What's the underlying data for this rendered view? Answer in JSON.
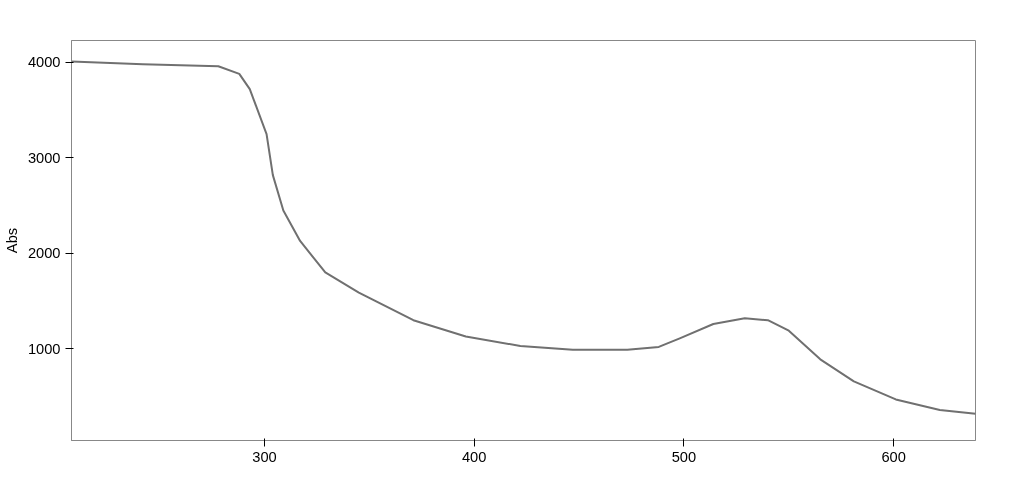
{
  "chart_data": {
    "type": "line",
    "ylabel": "Abs",
    "x": [
      208,
      242,
      278,
      288,
      293,
      301,
      304,
      309,
      317,
      329,
      345,
      371,
      396,
      422,
      447,
      473,
      488,
      498,
      514,
      529,
      540,
      550,
      565,
      581,
      601,
      622,
      639
    ],
    "series": [
      {
        "color": "#707070",
        "values": [
          4010,
          3980,
          3960,
          3880,
          3720,
          3250,
          2820,
          2450,
          2130,
          1800,
          1590,
          1300,
          1130,
          1030,
          990,
          990,
          1020,
          1110,
          1260,
          1320,
          1300,
          1190,
          890,
          660,
          470,
          360,
          320
        ]
      }
    ],
    "xlim": [
      208,
      639
    ],
    "xticks": [
      300,
      400,
      500,
      600
    ],
    "ylim": [
      40,
      4230
    ],
    "yticks": [
      1000,
      2000,
      3000,
      4000
    ],
    "grid": false,
    "marker": "none",
    "line_style": "solid"
  }
}
